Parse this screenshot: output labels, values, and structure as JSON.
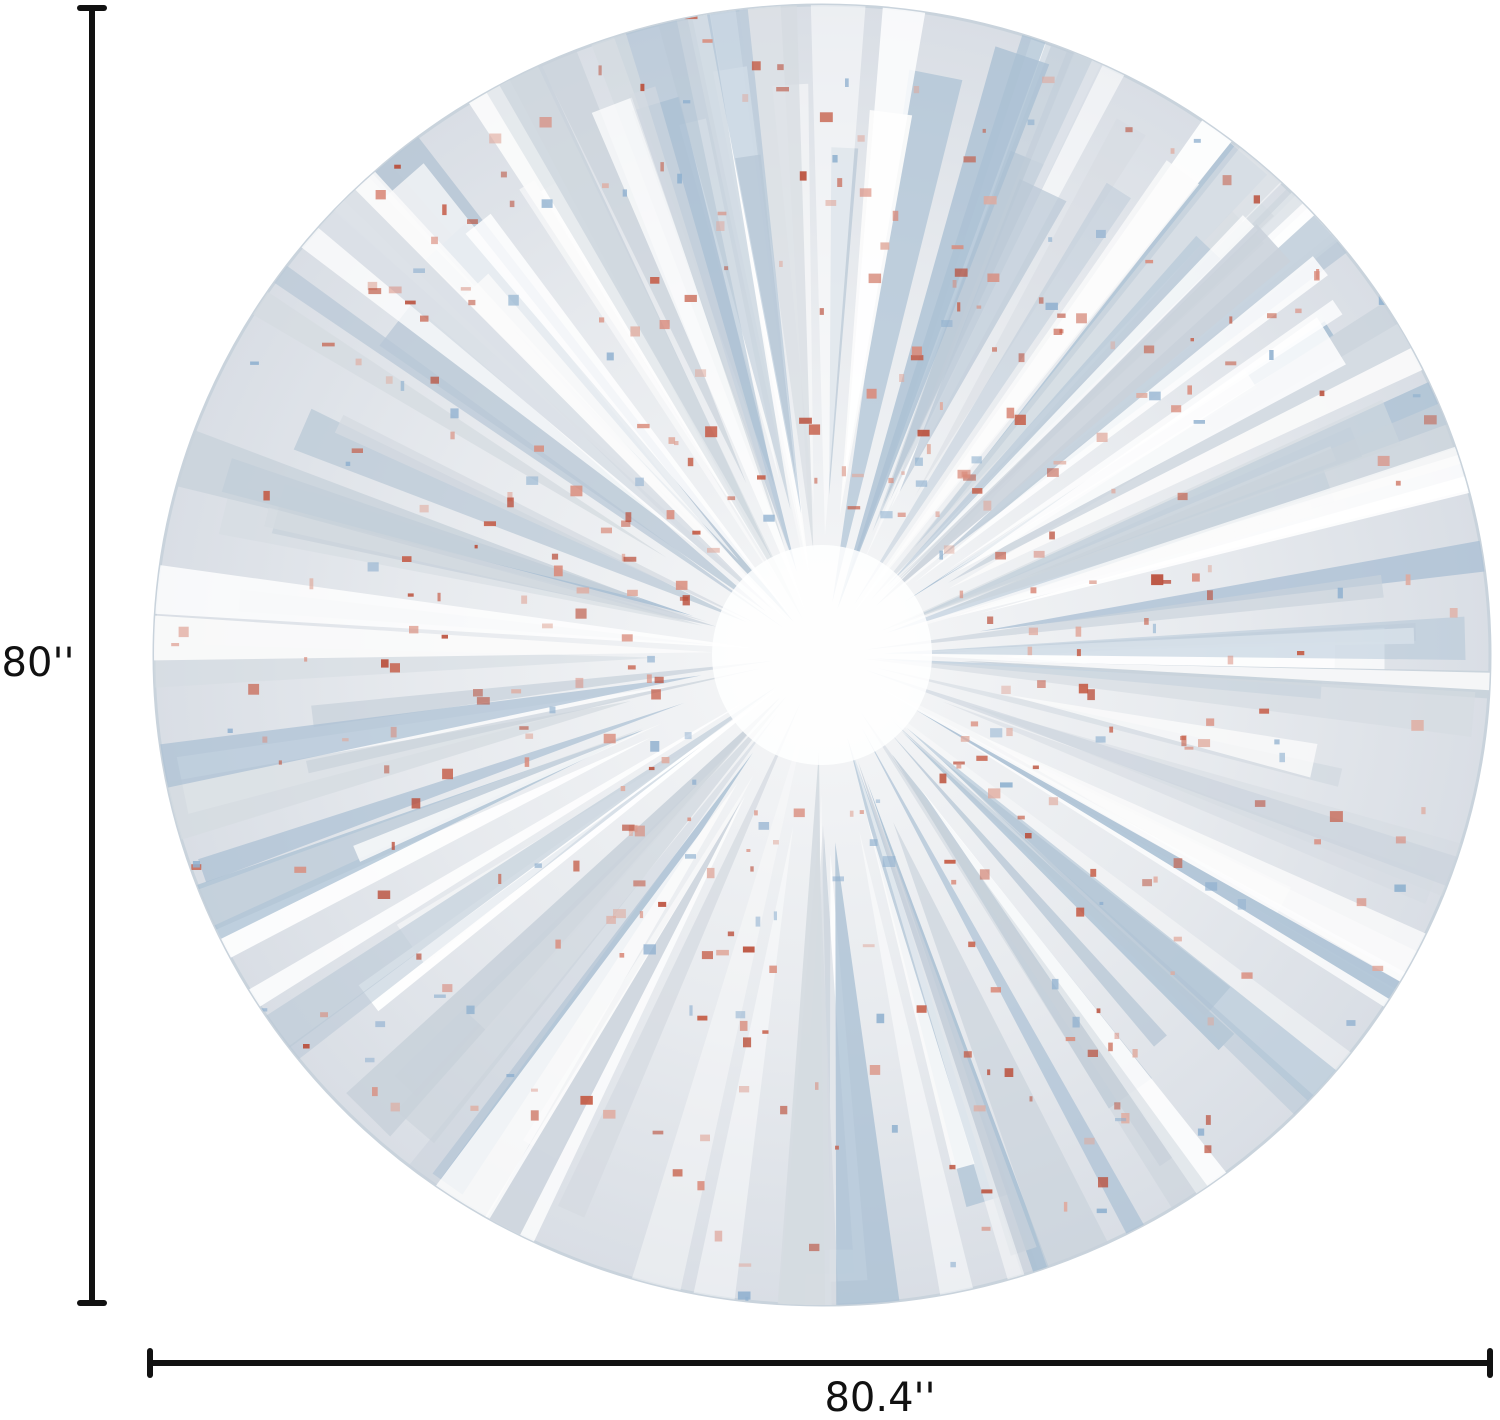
{
  "dimensions": {
    "height": "80''",
    "width": "80.4''"
  }
}
